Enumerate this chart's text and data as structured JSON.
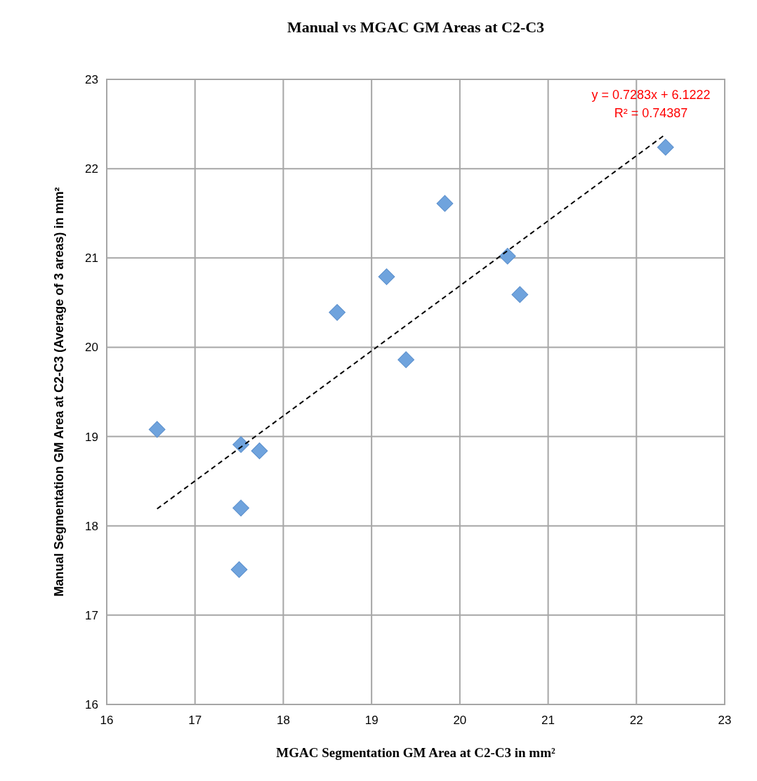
{
  "chart_data": {
    "type": "scatter",
    "title": "Manual vs MGAC GM Areas at C2-C3",
    "xlabel": "MGAC Segmentation GM Area at C2-C3 in mm²",
    "ylabel": "Manual Segmentation GM Area at C2-C3 (Average of 3 areas) in mm²",
    "xlim": [
      16,
      23
    ],
    "ylim": [
      16,
      23
    ],
    "xticks": [
      16,
      17,
      18,
      19,
      20,
      21,
      22,
      23
    ],
    "yticks": [
      16,
      17,
      18,
      19,
      20,
      21,
      22,
      23
    ],
    "grid": true,
    "marker": "diamond",
    "annotations": [
      "y = 0.7283x + 6.1222",
      "R² = 0.74387"
    ],
    "series": [
      {
        "color": "#6fa3dd",
        "x": [
          16.57,
          17.52,
          17.73,
          17.52,
          17.5,
          18.61,
          19.17,
          19.39,
          19.83,
          20.54,
          20.68,
          22.33
        ],
        "values": [
          19.08,
          18.91,
          18.84,
          18.2,
          17.51,
          20.39,
          20.79,
          19.86,
          21.61,
          21.02,
          20.59,
          22.24
        ]
      },
      {
        "type": "line",
        "color": "#000000",
        "line_style": "dashed",
        "marker": "none",
        "x": [
          16.57,
          22.31
        ],
        "values": [
          18.19,
          22.37
        ]
      }
    ]
  }
}
